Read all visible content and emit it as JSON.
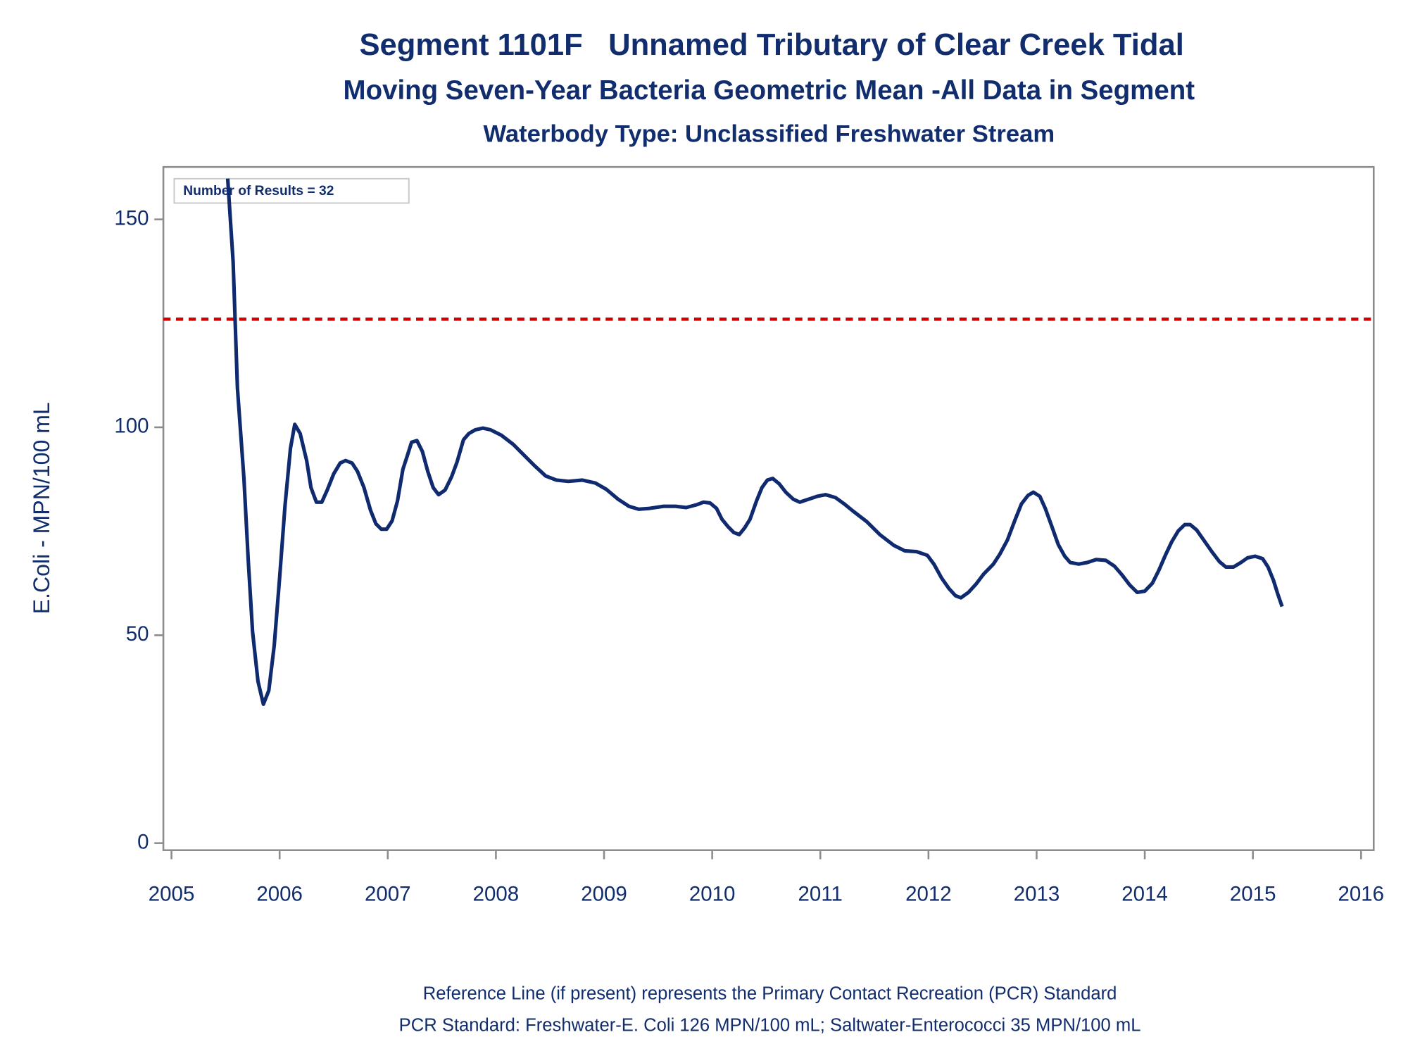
{
  "chart_data": {
    "type": "line",
    "title": "Segment 1101F   Unnamed Tributary of Clear Creek Tidal",
    "subtitle": "Moving Seven-Year Bacteria Geometric Mean -All Data in Segment",
    "subtitle2": "Waterbody Type: Unclassified Freshwater Stream",
    "y_label": "E.Coli - MPN/100 mL",
    "annotation": "Number of Results = 32",
    "footnotes": [
      "Reference Line (if present) represents the Primary Contact Recreation (PCR) Standard",
      "PCR Standard: Freshwater-E. Coli 126 MPN/100 mL; Saltwater-Enterococci 35 MPN/100 mL"
    ],
    "reference_line": {
      "value": 126,
      "color": "#cc0000"
    },
    "xlim": [
      2004.925,
      2016.117
    ],
    "xticks": [
      2005,
      2006,
      2007,
      2008,
      2009,
      2010,
      2011,
      2012,
      2013,
      2014,
      2015,
      2016
    ],
    "ylim": [
      -1.7,
      162.6
    ],
    "yticks": [
      0,
      50,
      100,
      150
    ],
    "series": [
      {
        "name": "Geometric Mean",
        "color": "#0f2a6e",
        "x": [
          2005.52,
          2005.57,
          2005.61,
          2005.67,
          2005.71,
          2005.75,
          2005.8,
          2005.85,
          2005.9,
          2005.95,
          2006.0,
          2006.05,
          2006.1,
          2006.14,
          2006.19,
          2006.25,
          2006.29,
          2006.34,
          2006.39,
          2006.44,
          2006.5,
          2006.56,
          2006.61,
          2006.67,
          2006.72,
          2006.78,
          2006.84,
          2006.89,
          2006.94,
          2006.99,
          2007.04,
          2007.09,
          2007.14,
          2007.18,
          2007.22,
          2007.27,
          2007.32,
          2007.37,
          2007.42,
          2007.47,
          2007.53,
          2007.59,
          2007.64,
          2007.7,
          2007.75,
          2007.81,
          2007.88,
          2007.95,
          2008.05,
          2008.16,
          2008.26,
          2008.36,
          2008.46,
          2008.56,
          2008.67,
          2008.8,
          2008.92,
          2009.02,
          2009.13,
          2009.23,
          2009.32,
          2009.42,
          2009.55,
          2009.66,
          2009.76,
          2009.86,
          2009.92,
          2009.98,
          2010.04,
          2010.09,
          2010.15,
          2010.2,
          2010.25,
          2010.3,
          2010.35,
          2010.41,
          2010.46,
          2010.51,
          2010.56,
          2010.62,
          2010.68,
          2010.75,
          2010.81,
          2010.89,
          2010.97,
          2011.05,
          2011.14,
          2011.22,
          2011.3,
          2011.43,
          2011.55,
          2011.68,
          2011.78,
          2011.89,
          2011.99,
          2012.05,
          2012.12,
          2012.19,
          2012.25,
          2012.3,
          2012.37,
          2012.44,
          2012.51,
          2012.6,
          2012.66,
          2012.73,
          2012.8,
          2012.86,
          2012.92,
          2012.97,
          2013.03,
          2013.08,
          2013.14,
          2013.2,
          2013.26,
          2013.31,
          2013.39,
          2013.47,
          2013.55,
          2013.64,
          2013.72,
          2013.79,
          2013.86,
          2013.93,
          2014.0,
          2014.07,
          2014.13,
          2014.19,
          2014.25,
          2014.31,
          2014.37,
          2014.42,
          2014.48,
          2014.55,
          2014.62,
          2014.69,
          2014.75,
          2014.82,
          2014.89,
          2014.95,
          2015.02,
          2015.09,
          2015.14,
          2015.19,
          2015.23,
          2015.27
        ],
        "values": [
          159.8,
          139.8,
          109.4,
          87.7,
          68,
          50.8,
          38.9,
          33.4,
          36.7,
          47.5,
          63.8,
          81.2,
          94.9,
          100.7,
          98.5,
          92,
          85.5,
          82,
          82,
          84.9,
          88.8,
          91.4,
          92,
          91.4,
          89.4,
          85.5,
          80.1,
          76.8,
          75.5,
          75.5,
          77.5,
          82.3,
          89.9,
          93.1,
          96.4,
          96.8,
          94.2,
          89.4,
          85.5,
          83.8,
          84.9,
          88.1,
          91.6,
          97,
          98.5,
          99.4,
          99.8,
          99.4,
          98.1,
          95.9,
          93.3,
          90.7,
          88.3,
          87.3,
          87.0,
          87.3,
          86.6,
          85.1,
          82.7,
          81,
          80.3,
          80.5,
          81,
          81,
          80.7,
          81.4,
          82,
          81.8,
          80.5,
          77.9,
          76,
          74.7,
          74.2,
          75.8,
          77.9,
          82.3,
          85.5,
          87.3,
          87.7,
          86.4,
          84.4,
          82.7,
          82.0,
          82.7,
          83.4,
          83.8,
          83.1,
          81.6,
          79.9,
          77.3,
          74.2,
          71.6,
          70.3,
          70.1,
          69.2,
          67.1,
          63.8,
          61.2,
          59.5,
          59.0,
          60.3,
          62.3,
          64.7,
          67.1,
          69.5,
          72.9,
          77.7,
          81.6,
          83.6,
          84.4,
          83.4,
          80.5,
          76.2,
          71.8,
          69,
          67.5,
          67.1,
          67.5,
          68.2,
          68.0,
          66.6,
          64.5,
          62.1,
          60.3,
          60.6,
          62.5,
          65.6,
          69.2,
          72.5,
          75.1,
          76.6,
          76.6,
          75.3,
          72.7,
          70.1,
          67.7,
          66.4,
          66.4,
          67.5,
          68.6,
          69.0,
          68.4,
          66.4,
          63.2,
          59.9,
          56.9
        ]
      }
    ]
  }
}
